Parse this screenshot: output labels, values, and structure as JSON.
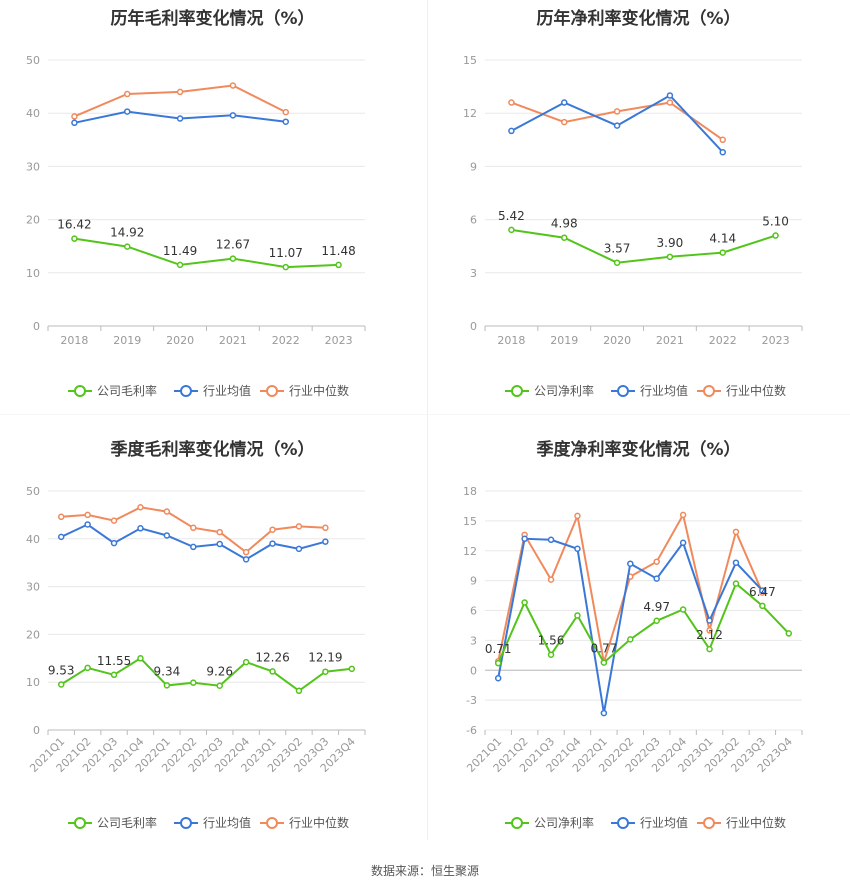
{
  "source": "数据来源：恒生聚源",
  "chart_data": [
    {
      "type": "line",
      "title": "历年毛利率变化情况（%）",
      "categories": [
        "2018",
        "2019",
        "2020",
        "2021",
        "2022",
        "2023"
      ],
      "ylim": [
        0,
        50
      ],
      "yticks": [
        0,
        10,
        20,
        30,
        40,
        50
      ],
      "grid": true,
      "legend_position": "bottom",
      "series": [
        {
          "name": "公司毛利率",
          "color": "#52c41a",
          "values": [
            16.42,
            14.92,
            11.49,
            12.67,
            11.07,
            11.48
          ],
          "labels": [
            "16.42",
            "14.92",
            "11.49",
            "12.67",
            "11.07",
            "11.48"
          ]
        },
        {
          "name": "行业均值",
          "color": "#3a78d8",
          "values": [
            38.2,
            40.3,
            39.0,
            39.6,
            38.4,
            null
          ]
        },
        {
          "name": "行业中位数",
          "color": "#f08a5d",
          "values": [
            39.4,
            43.6,
            44.0,
            45.2,
            40.2,
            null
          ]
        }
      ]
    },
    {
      "type": "line",
      "title": "历年净利率变化情况（%）",
      "categories": [
        "2018",
        "2019",
        "2020",
        "2021",
        "2022",
        "2023"
      ],
      "ylim": [
        0,
        15
      ],
      "yticks": [
        0,
        3,
        6,
        9,
        12,
        15
      ],
      "grid": true,
      "legend_position": "bottom",
      "series": [
        {
          "name": "公司净利率",
          "color": "#52c41a",
          "values": [
            5.42,
            4.98,
            3.57,
            3.9,
            4.14,
            5.1
          ],
          "labels": [
            "5.42",
            "4.98",
            "3.57",
            "3.90",
            "4.14",
            "5.10"
          ]
        },
        {
          "name": "行业均值",
          "color": "#3a78d8",
          "values": [
            11.0,
            12.6,
            11.3,
            13.0,
            9.8,
            null
          ]
        },
        {
          "name": "行业中位数",
          "color": "#f08a5d",
          "values": [
            12.6,
            11.5,
            12.1,
            12.6,
            10.5,
            null
          ]
        }
      ]
    },
    {
      "type": "line",
      "title": "季度毛利率变化情况（%）",
      "categories": [
        "2021Q1",
        "2021Q2",
        "2021Q3",
        "2021Q4",
        "2022Q1",
        "2022Q2",
        "2022Q3",
        "2022Q4",
        "2023Q1",
        "2023Q2",
        "2023Q3",
        "2023Q4"
      ],
      "ylim": [
        0,
        50
      ],
      "yticks": [
        0,
        10,
        20,
        30,
        40,
        50
      ],
      "grid": true,
      "legend_position": "bottom",
      "series": [
        {
          "name": "公司毛利率",
          "color": "#52c41a",
          "values": [
            9.53,
            13.0,
            11.55,
            15.0,
            9.34,
            9.9,
            9.26,
            14.2,
            12.26,
            8.2,
            12.19,
            12.8
          ],
          "labels": [
            "9.53",
            "",
            "11.55",
            "",
            "9.34",
            "",
            "9.26",
            "",
            "12.26",
            "",
            "12.19",
            ""
          ]
        },
        {
          "name": "行业均值",
          "color": "#3a78d8",
          "values": [
            40.4,
            43.0,
            39.1,
            42.2,
            40.7,
            38.3,
            38.9,
            35.7,
            39.0,
            37.9,
            39.4,
            null
          ]
        },
        {
          "name": "行业中位数",
          "color": "#f08a5d",
          "values": [
            44.6,
            45.0,
            43.8,
            46.6,
            45.7,
            42.3,
            41.4,
            37.2,
            41.9,
            42.6,
            42.3,
            null
          ]
        }
      ]
    },
    {
      "type": "line",
      "title": "季度净利率变化情况（%）",
      "categories": [
        "2021Q1",
        "2021Q2",
        "2021Q3",
        "2021Q4",
        "2022Q1",
        "2022Q2",
        "2022Q3",
        "2022Q4",
        "2023Q1",
        "2023Q2",
        "2023Q3",
        "2023Q4"
      ],
      "ylim": [
        -6,
        18
      ],
      "yticks": [
        -6,
        -3,
        0,
        3,
        6,
        9,
        12,
        15,
        18
      ],
      "grid": true,
      "legend_position": "bottom",
      "series": [
        {
          "name": "公司净利率",
          "color": "#52c41a",
          "values": [
            0.71,
            6.8,
            1.56,
            5.5,
            0.77,
            3.1,
            4.97,
            6.1,
            2.12,
            8.7,
            6.47,
            3.7
          ],
          "labels": [
            "0.71",
            "",
            "1.56",
            "",
            "0.77",
            "",
            "4.97",
            "",
            "2.12",
            "",
            "6.47",
            ""
          ]
        },
        {
          "name": "行业均值",
          "color": "#3a78d8",
          "values": [
            -0.8,
            13.2,
            13.1,
            12.2,
            -4.3,
            10.7,
            9.2,
            12.8,
            5.0,
            10.8,
            8.0,
            null
          ]
        },
        {
          "name": "行业中位数",
          "color": "#f08a5d",
          "values": [
            0.9,
            13.6,
            9.1,
            15.5,
            0.8,
            9.4,
            10.9,
            15.6,
            4.0,
            13.9,
            7.8,
            null
          ]
        }
      ]
    }
  ]
}
